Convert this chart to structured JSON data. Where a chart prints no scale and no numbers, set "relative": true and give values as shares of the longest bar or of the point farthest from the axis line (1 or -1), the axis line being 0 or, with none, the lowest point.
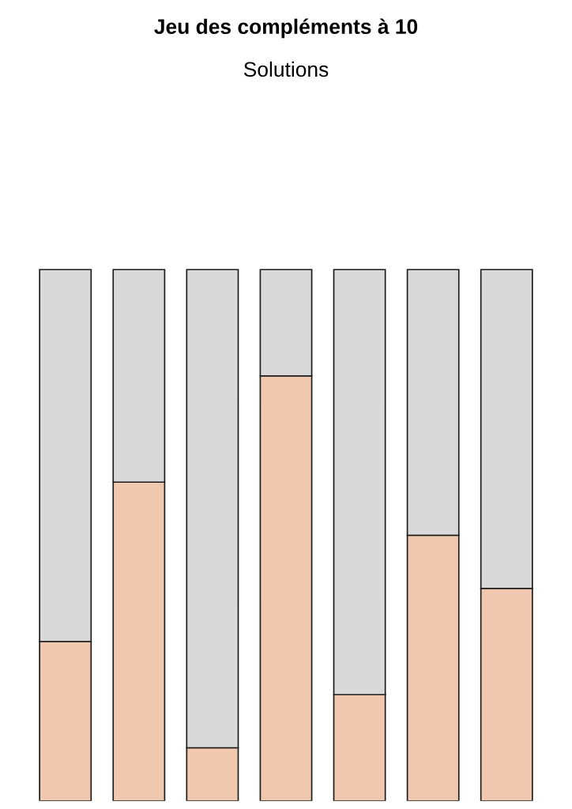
{
  "chart_data": {
    "type": "bar",
    "title": "Jeu des compléments à 10",
    "subtitle": "Solutions",
    "categories": [
      null,
      null,
      null,
      null,
      null,
      null,
      null
    ],
    "stacked": true,
    "relative": true,
    "grid": false,
    "legend": false,
    "series": [
      {
        "color": "#f0c8b0",
        "values": [
          0.3,
          0.6,
          0.1,
          0.8,
          0.2,
          0.5,
          0.4
        ]
      },
      {
        "color": "#d9d9d9",
        "values": [
          0.7,
          0.4,
          0.9,
          0.2,
          0.8,
          0.5,
          0.6
        ]
      }
    ]
  }
}
